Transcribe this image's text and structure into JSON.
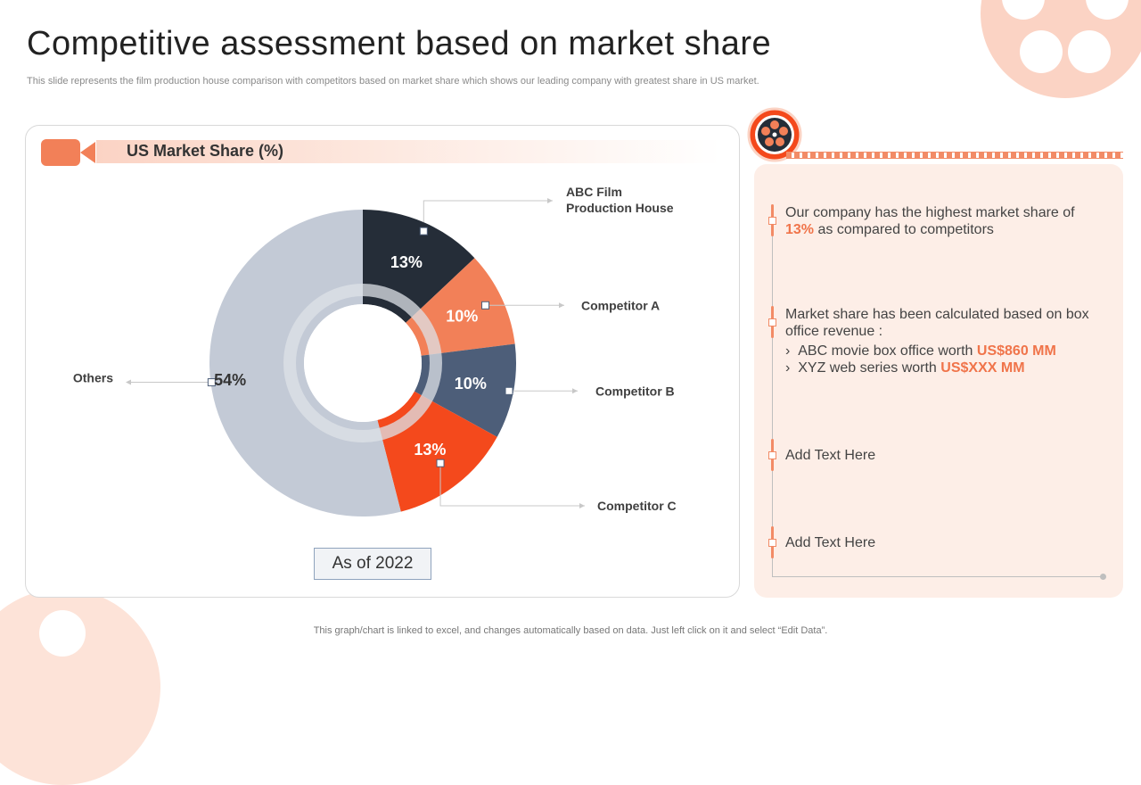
{
  "page": {
    "title": "Competitive assessment based on market share",
    "subtitle": "This slide represents the film production house comparison with competitors based on market share which shows our leading company with greatest share in US market.",
    "footer": "This graph/chart is linked to excel, and changes automatically based on data. Just left click on it and select “Edit Data”."
  },
  "chart_panel": {
    "as_of": "As of 2022"
  },
  "chart_data": {
    "type": "pie",
    "title": "US Market Share (%)",
    "categories": [
      "ABC Film Production House",
      "Competitor A",
      "Competitor B",
      "Competitor C",
      "Others"
    ],
    "values": [
      13,
      10,
      10,
      13,
      54
    ],
    "value_labels": [
      "13%",
      "10%",
      "10%",
      "13%",
      "54%"
    ],
    "colors": [
      "#252d38",
      "#f28058",
      "#4d5e79",
      "#f4491c",
      "#c3cad6"
    ],
    "label_lines": [
      "ABC Film",
      "Production House"
    ]
  },
  "right_panel": {
    "point1": {
      "text_before": "Our company has the highest market share of ",
      "highlight": "13%",
      "text_after": " as compared to competitors"
    },
    "point2": {
      "text": "Market share has been calculated based on box office revenue :",
      "sub1_prefix": "ABC movie box office worth ",
      "sub1_value": "US$860 MM",
      "sub2_prefix": "XYZ web series worth ",
      "sub2_value": "US$XXX MM"
    },
    "point3": "Add Text Here",
    "point4": "Add Text Here"
  },
  "icons": {
    "header": "camera-icon",
    "reel": "film-reel-icon",
    "bullet": "›"
  },
  "colors": {
    "accent": "#f28b66",
    "highlight": "#f0744a",
    "panel_bg": "#fdeee7"
  }
}
